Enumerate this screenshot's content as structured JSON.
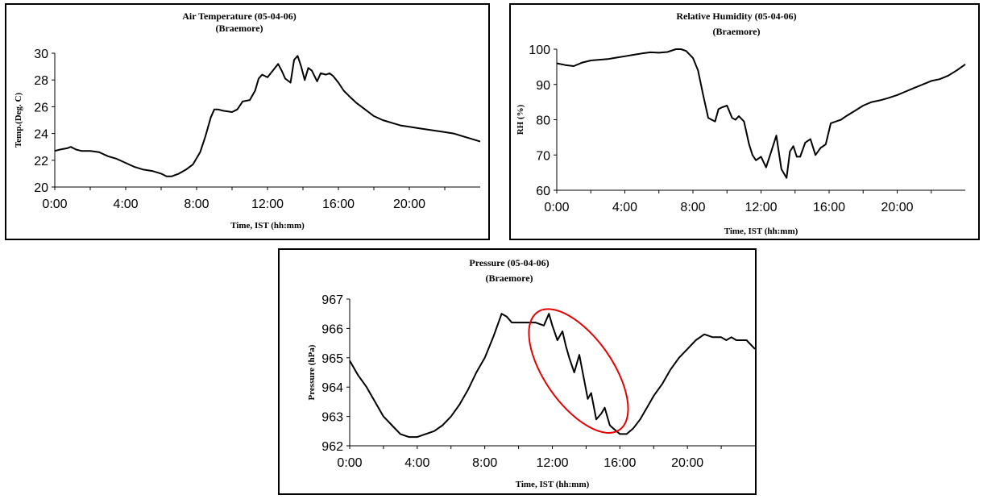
{
  "chart_data": [
    {
      "type": "line",
      "title": "Air Temperature (05-04-06)",
      "subtitle": "(Braemore)",
      "xlabel": "Time, IST (hh:mm)",
      "ylabel": "Temp.(Deg. C)",
      "xlim": [
        0,
        24
      ],
      "ylim": [
        20,
        30
      ],
      "x_ticks": [
        "0:00",
        "4:00",
        "8:00",
        "12:00",
        "16:00",
        "20:00"
      ],
      "y_ticks": [
        "20",
        "22",
        "24",
        "26",
        "28",
        "30"
      ],
      "grid": false,
      "series": [
        {
          "x": [
            0,
            0.3,
            0.7,
            0.9,
            1.2,
            1.5,
            2.0,
            2.5,
            3.0,
            3.5,
            4.0,
            4.5,
            5.0,
            5.5,
            6.0,
            6.3,
            6.6,
            7.0,
            7.4,
            7.8,
            8.2,
            8.5,
            8.8,
            9.0,
            9.2,
            9.5,
            10.0,
            10.3,
            10.6,
            11.0,
            11.3,
            11.5,
            11.7,
            12.0,
            12.3,
            12.6,
            12.8,
            13.0,
            13.3,
            13.5,
            13.7,
            13.9,
            14.1,
            14.3,
            14.5,
            14.8,
            15.0,
            15.3,
            15.5,
            15.7,
            16.0,
            16.3,
            16.6,
            17.0,
            17.5,
            18.0,
            18.5,
            19.0,
            19.5,
            20.0,
            20.5,
            21.0,
            21.5,
            22.0,
            22.5,
            23.0,
            23.5,
            24.0
          ],
          "y": [
            22.7,
            22.8,
            22.9,
            23.0,
            22.8,
            22.7,
            22.7,
            22.6,
            22.3,
            22.1,
            21.8,
            21.5,
            21.3,
            21.2,
            21.0,
            20.8,
            20.8,
            21.0,
            21.3,
            21.7,
            22.6,
            23.8,
            25.2,
            25.8,
            25.8,
            25.7,
            25.6,
            25.8,
            26.4,
            26.5,
            27.2,
            28.1,
            28.4,
            28.2,
            28.7,
            29.2,
            28.7,
            28.1,
            27.8,
            29.5,
            29.8,
            29.0,
            28.0,
            28.9,
            28.7,
            27.9,
            28.5,
            28.4,
            28.5,
            28.3,
            27.8,
            27.2,
            26.8,
            26.3,
            25.8,
            25.3,
            25.0,
            24.8,
            24.6,
            24.5,
            24.4,
            24.3,
            24.2,
            24.1,
            24.0,
            23.8,
            23.6,
            23.4
          ]
        }
      ]
    },
    {
      "type": "line",
      "title": "Relative Humidity (05-04-06)",
      "subtitle": "(Braemore)",
      "xlabel": "Time, IST (hh:mm)",
      "ylabel": "RH (%)",
      "xlim": [
        0,
        24
      ],
      "ylim": [
        60,
        100
      ],
      "x_ticks": [
        "0:00",
        "4:00",
        "8:00",
        "12:00",
        "16:00",
        "20:00"
      ],
      "y_ticks": [
        "60",
        "70",
        "80",
        "90",
        "100"
      ],
      "grid": false,
      "series": [
        {
          "x": [
            0,
            0.5,
            1.0,
            1.5,
            2.0,
            2.5,
            3.0,
            3.5,
            4.0,
            4.5,
            5.0,
            5.5,
            6.0,
            6.5,
            7.0,
            7.3,
            7.6,
            8.0,
            8.3,
            8.6,
            8.9,
            9.1,
            9.3,
            9.5,
            9.7,
            10.0,
            10.3,
            10.5,
            10.7,
            11.0,
            11.3,
            11.5,
            11.7,
            12.0,
            12.3,
            12.6,
            12.9,
            13.2,
            13.5,
            13.7,
            13.9,
            14.1,
            14.3,
            14.6,
            14.9,
            15.2,
            15.5,
            15.8,
            16.1,
            16.4,
            16.7,
            17.0,
            17.5,
            18.0,
            18.5,
            19.0,
            19.5,
            20.0,
            20.5,
            21.0,
            21.5,
            22.0,
            22.5,
            23.0,
            23.5,
            24.0
          ],
          "y": [
            96,
            95.5,
            95.2,
            96.2,
            96.8,
            97.0,
            97.2,
            97.6,
            98.0,
            98.4,
            98.8,
            99.1,
            99.0,
            99.2,
            100,
            100,
            99.5,
            97.5,
            94.0,
            87.0,
            80.5,
            80.0,
            79.5,
            83.0,
            83.5,
            84.0,
            80.5,
            80.0,
            81.0,
            79.5,
            73.0,
            70.0,
            68.5,
            69.5,
            66.5,
            71.0,
            75.5,
            66.0,
            63.5,
            71.0,
            72.5,
            69.5,
            69.5,
            73.5,
            74.5,
            70.0,
            72.0,
            73.0,
            79.0,
            79.5,
            80.0,
            81.0,
            82.5,
            84.0,
            85.0,
            85.5,
            86.2,
            87.0,
            88.0,
            89.0,
            90.0,
            91.0,
            91.5,
            92.5,
            94.0,
            95.7
          ]
        }
      ]
    },
    {
      "type": "line",
      "title": "Pressure (05-04-06)",
      "subtitle": "(Braemore)",
      "xlabel": "Time, IST (hh:mm)",
      "ylabel": "Pressure (hPa)",
      "xlim": [
        0,
        24
      ],
      "ylim": [
        962,
        967
      ],
      "x_ticks": [
        "0:00",
        "4:00",
        "8:00",
        "12:00",
        "16:00",
        "20:00"
      ],
      "y_ticks": [
        "962",
        "963",
        "964",
        "965",
        "966",
        "967"
      ],
      "grid": false,
      "annotation": "red ellipse highlighting pressure drop 11:30–16:00",
      "series": [
        {
          "x": [
            0,
            0.5,
            1.0,
            1.5,
            2.0,
            2.5,
            3.0,
            3.5,
            4.0,
            4.5,
            5.0,
            5.5,
            6.0,
            6.5,
            7.0,
            7.5,
            8.0,
            8.5,
            9.0,
            9.3,
            9.6,
            10.0,
            10.5,
            11.0,
            11.5,
            11.8,
            12.0,
            12.3,
            12.6,
            12.8,
            13.0,
            13.3,
            13.6,
            13.9,
            14.1,
            14.3,
            14.6,
            14.9,
            15.1,
            15.4,
            15.6,
            16.0,
            16.4,
            16.8,
            17.2,
            17.6,
            18.0,
            18.5,
            19.0,
            19.5,
            20.0,
            20.5,
            21.0,
            21.5,
            22.0,
            22.3,
            22.6,
            22.9,
            23.2,
            23.5,
            24.0
          ],
          "y": [
            964.9,
            964.4,
            964.0,
            963.5,
            963.0,
            962.7,
            962.4,
            962.3,
            962.3,
            962.4,
            962.5,
            962.7,
            963.0,
            963.4,
            963.9,
            964.5,
            965.0,
            965.7,
            966.5,
            966.4,
            966.2,
            966.2,
            966.2,
            966.2,
            966.1,
            966.5,
            966.1,
            965.6,
            965.9,
            965.4,
            965.0,
            964.5,
            965.1,
            964.2,
            963.6,
            963.8,
            962.9,
            963.1,
            963.3,
            962.7,
            962.6,
            962.4,
            962.4,
            962.6,
            962.9,
            963.3,
            963.7,
            964.1,
            964.6,
            965.0,
            965.3,
            965.6,
            965.8,
            965.7,
            965.7,
            965.6,
            965.7,
            965.6,
            965.6,
            965.6,
            965.3
          ]
        }
      ]
    }
  ]
}
